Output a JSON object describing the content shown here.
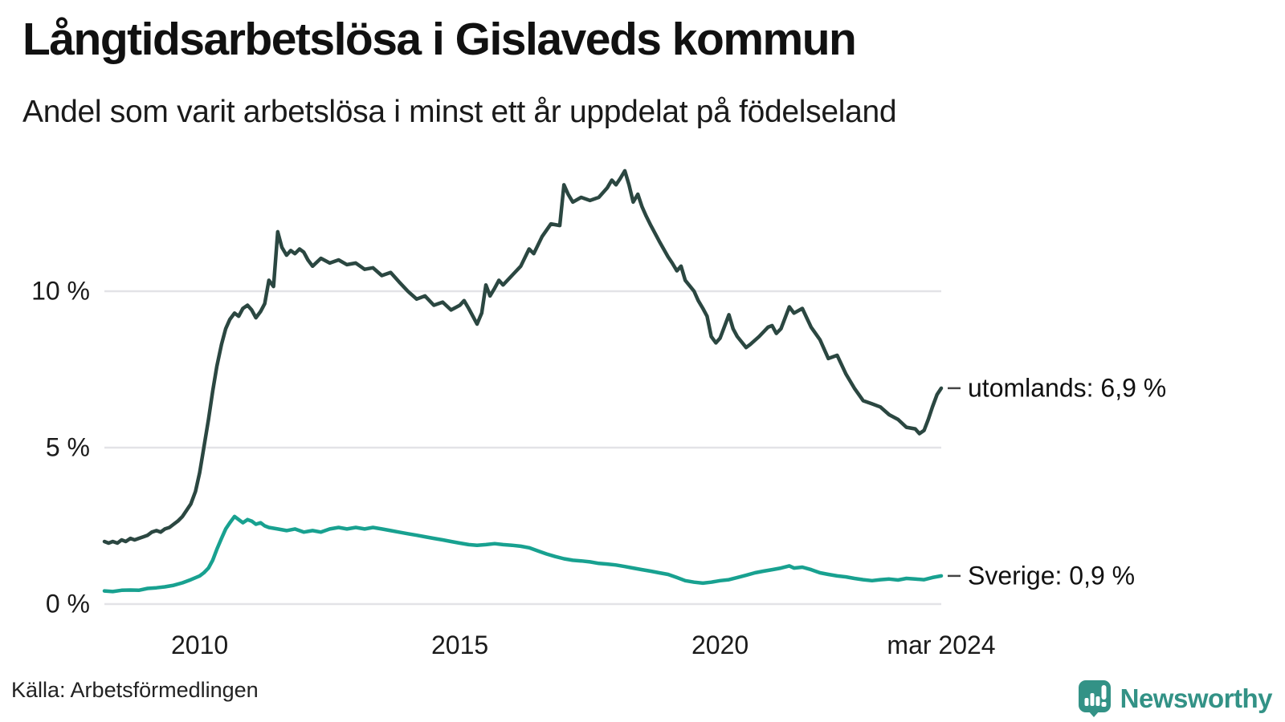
{
  "footer": {
    "source": "Källa: Arbetsförmedlingen",
    "brand": "Newsworthy",
    "brand_color": "#339286",
    "logo_icon": "speech-bubble-bar-chart-icon"
  },
  "chart_data": {
    "type": "line",
    "title": "Långtidsarbetslösa i Gislaveds kommun",
    "subtitle": "Andel som varit arbetslösa i minst ett år uppdelat på födelseland",
    "x_range": [
      2008.17,
      2024.25
    ],
    "ylim": [
      0,
      14.5
    ],
    "grid": true,
    "grid_color": "#e3e3e7",
    "axis_text_color": "#1a1a1a",
    "connector_color": "#444444",
    "legend_position": "end-of-line-labels",
    "yticks": [
      {
        "v": 0,
        "label": "0 %"
      },
      {
        "v": 5,
        "label": "5 %"
      },
      {
        "v": 10,
        "label": "10 %"
      }
    ],
    "xticks": [
      {
        "t": 2010,
        "label": "2010"
      },
      {
        "t": 2015,
        "label": "2015"
      },
      {
        "t": 2020,
        "label": "2020"
      },
      {
        "t": 2024.25,
        "label": "mar 2024"
      }
    ],
    "series": [
      {
        "name": "utomlands",
        "color": "#2b4741",
        "end_label": "utomlands: 6,9 %",
        "end_value": 6.9,
        "points": [
          [
            2008.17,
            2.0
          ],
          [
            2008.25,
            1.95
          ],
          [
            2008.33,
            2.0
          ],
          [
            2008.42,
            1.95
          ],
          [
            2008.5,
            2.05
          ],
          [
            2008.58,
            2.0
          ],
          [
            2008.67,
            2.1
          ],
          [
            2008.75,
            2.05
          ],
          [
            2008.83,
            2.1
          ],
          [
            2008.92,
            2.15
          ],
          [
            2009.0,
            2.2
          ],
          [
            2009.08,
            2.3
          ],
          [
            2009.17,
            2.35
          ],
          [
            2009.25,
            2.3
          ],
          [
            2009.33,
            2.4
          ],
          [
            2009.42,
            2.45
          ],
          [
            2009.5,
            2.55
          ],
          [
            2009.58,
            2.65
          ],
          [
            2009.67,
            2.8
          ],
          [
            2009.75,
            3.0
          ],
          [
            2009.83,
            3.2
          ],
          [
            2009.92,
            3.6
          ],
          [
            2010.0,
            4.2
          ],
          [
            2010.08,
            5.0
          ],
          [
            2010.17,
            5.9
          ],
          [
            2010.25,
            6.8
          ],
          [
            2010.33,
            7.6
          ],
          [
            2010.42,
            8.3
          ],
          [
            2010.5,
            8.8
          ],
          [
            2010.58,
            9.1
          ],
          [
            2010.67,
            9.3
          ],
          [
            2010.75,
            9.2
          ],
          [
            2010.83,
            9.45
          ],
          [
            2010.92,
            9.55
          ],
          [
            2011.0,
            9.4
          ],
          [
            2011.08,
            9.15
          ],
          [
            2011.17,
            9.35
          ],
          [
            2011.25,
            9.6
          ],
          [
            2011.33,
            10.35
          ],
          [
            2011.42,
            10.15
          ],
          [
            2011.5,
            11.9
          ],
          [
            2011.58,
            11.4
          ],
          [
            2011.67,
            11.15
          ],
          [
            2011.75,
            11.3
          ],
          [
            2011.83,
            11.2
          ],
          [
            2011.92,
            11.35
          ],
          [
            2012.0,
            11.25
          ],
          [
            2012.08,
            11.0
          ],
          [
            2012.17,
            10.8
          ],
          [
            2012.33,
            11.05
          ],
          [
            2012.5,
            10.9
          ],
          [
            2012.67,
            11.0
          ],
          [
            2012.83,
            10.85
          ],
          [
            2013.0,
            10.9
          ],
          [
            2013.17,
            10.7
          ],
          [
            2013.33,
            10.75
          ],
          [
            2013.5,
            10.5
          ],
          [
            2013.67,
            10.6
          ],
          [
            2013.83,
            10.3
          ],
          [
            2014.0,
            10.0
          ],
          [
            2014.17,
            9.75
          ],
          [
            2014.33,
            9.85
          ],
          [
            2014.5,
            9.55
          ],
          [
            2014.67,
            9.65
          ],
          [
            2014.83,
            9.4
          ],
          [
            2015.0,
            9.55
          ],
          [
            2015.08,
            9.7
          ],
          [
            2015.17,
            9.45
          ],
          [
            2015.25,
            9.2
          ],
          [
            2015.33,
            8.95
          ],
          [
            2015.42,
            9.3
          ],
          [
            2015.5,
            10.2
          ],
          [
            2015.58,
            9.85
          ],
          [
            2015.67,
            10.1
          ],
          [
            2015.75,
            10.35
          ],
          [
            2015.83,
            10.2
          ],
          [
            2016.0,
            10.5
          ],
          [
            2016.17,
            10.8
          ],
          [
            2016.33,
            11.35
          ],
          [
            2016.42,
            11.2
          ],
          [
            2016.58,
            11.75
          ],
          [
            2016.75,
            12.15
          ],
          [
            2016.92,
            12.1
          ],
          [
            2017.0,
            13.4
          ],
          [
            2017.08,
            13.1
          ],
          [
            2017.17,
            12.85
          ],
          [
            2017.33,
            13.0
          ],
          [
            2017.5,
            12.9
          ],
          [
            2017.67,
            13.0
          ],
          [
            2017.83,
            13.3
          ],
          [
            2017.92,
            13.55
          ],
          [
            2018.0,
            13.4
          ],
          [
            2018.08,
            13.6
          ],
          [
            2018.17,
            13.85
          ],
          [
            2018.25,
            13.4
          ],
          [
            2018.33,
            12.85
          ],
          [
            2018.42,
            13.1
          ],
          [
            2018.5,
            12.7
          ],
          [
            2018.58,
            12.4
          ],
          [
            2018.67,
            12.1
          ],
          [
            2018.83,
            11.6
          ],
          [
            2019.0,
            11.1
          ],
          [
            2019.08,
            10.9
          ],
          [
            2019.17,
            10.65
          ],
          [
            2019.25,
            10.8
          ],
          [
            2019.33,
            10.35
          ],
          [
            2019.5,
            10.0
          ],
          [
            2019.58,
            9.7
          ],
          [
            2019.67,
            9.45
          ],
          [
            2019.75,
            9.2
          ],
          [
            2019.83,
            8.55
          ],
          [
            2019.92,
            8.35
          ],
          [
            2020.0,
            8.5
          ],
          [
            2020.17,
            9.25
          ],
          [
            2020.25,
            8.8
          ],
          [
            2020.33,
            8.55
          ],
          [
            2020.5,
            8.2
          ],
          [
            2020.58,
            8.3
          ],
          [
            2020.75,
            8.55
          ],
          [
            2020.92,
            8.85
          ],
          [
            2021.0,
            8.9
          ],
          [
            2021.08,
            8.65
          ],
          [
            2021.17,
            8.8
          ],
          [
            2021.33,
            9.5
          ],
          [
            2021.42,
            9.3
          ],
          [
            2021.58,
            9.45
          ],
          [
            2021.75,
            8.85
          ],
          [
            2021.92,
            8.45
          ],
          [
            2022.08,
            7.85
          ],
          [
            2022.25,
            7.95
          ],
          [
            2022.42,
            7.35
          ],
          [
            2022.58,
            6.9
          ],
          [
            2022.75,
            6.5
          ],
          [
            2022.92,
            6.4
          ],
          [
            2023.08,
            6.3
          ],
          [
            2023.25,
            6.05
          ],
          [
            2023.42,
            5.9
          ],
          [
            2023.58,
            5.65
          ],
          [
            2023.75,
            5.6
          ],
          [
            2023.83,
            5.45
          ],
          [
            2023.92,
            5.55
          ],
          [
            2024.0,
            5.9
          ],
          [
            2024.08,
            6.3
          ],
          [
            2024.17,
            6.7
          ],
          [
            2024.25,
            6.9
          ]
        ]
      },
      {
        "name": "Sverige",
        "color": "#18a190",
        "end_label": "Sverige: 0,9 %",
        "end_value": 0.9,
        "points": [
          [
            2008.17,
            0.42
          ],
          [
            2008.33,
            0.4
          ],
          [
            2008.5,
            0.44
          ],
          [
            2008.67,
            0.45
          ],
          [
            2008.83,
            0.44
          ],
          [
            2009.0,
            0.5
          ],
          [
            2009.17,
            0.52
          ],
          [
            2009.33,
            0.55
          ],
          [
            2009.5,
            0.6
          ],
          [
            2009.67,
            0.68
          ],
          [
            2009.83,
            0.78
          ],
          [
            2010.0,
            0.9
          ],
          [
            2010.08,
            1.0
          ],
          [
            2010.17,
            1.15
          ],
          [
            2010.25,
            1.4
          ],
          [
            2010.33,
            1.75
          ],
          [
            2010.42,
            2.1
          ],
          [
            2010.5,
            2.4
          ],
          [
            2010.58,
            2.6
          ],
          [
            2010.67,
            2.8
          ],
          [
            2010.75,
            2.7
          ],
          [
            2010.83,
            2.6
          ],
          [
            2010.92,
            2.7
          ],
          [
            2011.0,
            2.65
          ],
          [
            2011.08,
            2.55
          ],
          [
            2011.17,
            2.6
          ],
          [
            2011.25,
            2.5
          ],
          [
            2011.33,
            2.45
          ],
          [
            2011.5,
            2.4
          ],
          [
            2011.67,
            2.35
          ],
          [
            2011.83,
            2.4
          ],
          [
            2012.0,
            2.3
          ],
          [
            2012.17,
            2.35
          ],
          [
            2012.33,
            2.3
          ],
          [
            2012.5,
            2.4
          ],
          [
            2012.67,
            2.45
          ],
          [
            2012.83,
            2.4
          ],
          [
            2013.0,
            2.45
          ],
          [
            2013.17,
            2.4
          ],
          [
            2013.33,
            2.45
          ],
          [
            2013.5,
            2.4
          ],
          [
            2013.67,
            2.35
          ],
          [
            2013.83,
            2.3
          ],
          [
            2014.0,
            2.25
          ],
          [
            2014.17,
            2.2
          ],
          [
            2014.33,
            2.15
          ],
          [
            2014.5,
            2.1
          ],
          [
            2014.67,
            2.05
          ],
          [
            2014.83,
            2.0
          ],
          [
            2015.0,
            1.95
          ],
          [
            2015.17,
            1.9
          ],
          [
            2015.33,
            1.88
          ],
          [
            2015.5,
            1.9
          ],
          [
            2015.67,
            1.93
          ],
          [
            2015.83,
            1.9
          ],
          [
            2016.0,
            1.88
          ],
          [
            2016.17,
            1.85
          ],
          [
            2016.33,
            1.8
          ],
          [
            2016.5,
            1.7
          ],
          [
            2016.67,
            1.6
          ],
          [
            2016.83,
            1.52
          ],
          [
            2017.0,
            1.45
          ],
          [
            2017.17,
            1.4
          ],
          [
            2017.33,
            1.38
          ],
          [
            2017.5,
            1.35
          ],
          [
            2017.67,
            1.3
          ],
          [
            2017.83,
            1.28
          ],
          [
            2018.0,
            1.25
          ],
          [
            2018.17,
            1.2
          ],
          [
            2018.33,
            1.15
          ],
          [
            2018.5,
            1.1
          ],
          [
            2018.67,
            1.05
          ],
          [
            2018.83,
            1.0
          ],
          [
            2019.0,
            0.95
          ],
          [
            2019.17,
            0.85
          ],
          [
            2019.33,
            0.75
          ],
          [
            2019.5,
            0.7
          ],
          [
            2019.67,
            0.67
          ],
          [
            2019.83,
            0.7
          ],
          [
            2020.0,
            0.75
          ],
          [
            2020.17,
            0.78
          ],
          [
            2020.33,
            0.85
          ],
          [
            2020.5,
            0.92
          ],
          [
            2020.67,
            1.0
          ],
          [
            2020.83,
            1.05
          ],
          [
            2021.0,
            1.1
          ],
          [
            2021.17,
            1.15
          ],
          [
            2021.33,
            1.22
          ],
          [
            2021.42,
            1.15
          ],
          [
            2021.58,
            1.18
          ],
          [
            2021.75,
            1.1
          ],
          [
            2021.92,
            1.0
          ],
          [
            2022.08,
            0.95
          ],
          [
            2022.25,
            0.9
          ],
          [
            2022.42,
            0.87
          ],
          [
            2022.58,
            0.82
          ],
          [
            2022.75,
            0.78
          ],
          [
            2022.92,
            0.75
          ],
          [
            2023.08,
            0.78
          ],
          [
            2023.25,
            0.8
          ],
          [
            2023.42,
            0.77
          ],
          [
            2023.58,
            0.82
          ],
          [
            2023.75,
            0.8
          ],
          [
            2023.92,
            0.78
          ],
          [
            2024.08,
            0.85
          ],
          [
            2024.25,
            0.9
          ]
        ]
      }
    ]
  }
}
